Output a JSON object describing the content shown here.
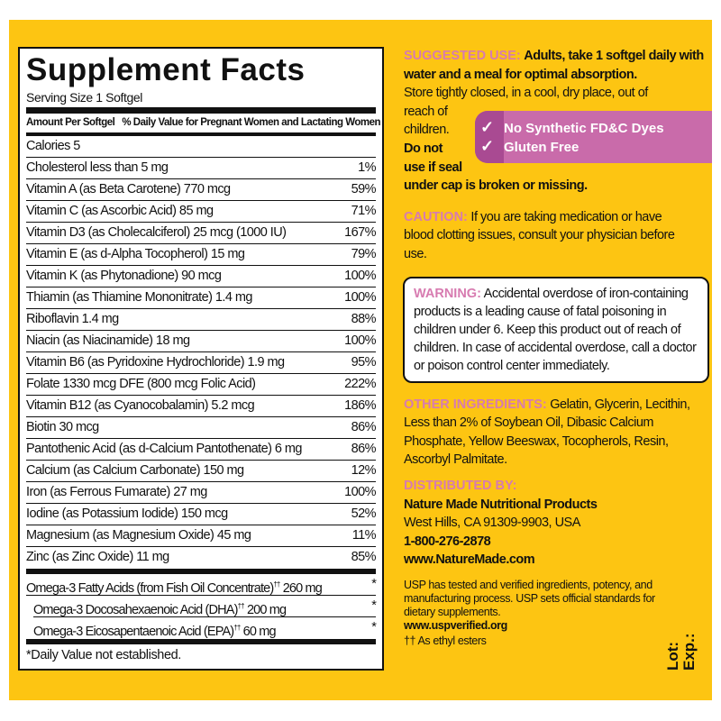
{
  "colors": {
    "background": "#FDC512",
    "accent_pink": "#D77BB0",
    "badge": "#C96BAA"
  },
  "facts": {
    "title": "Supplement Facts",
    "serving_size": "Serving Size 1 Softgel",
    "header_amount": "Amount Per Softgel",
    "header_dv": "% Daily Value for Pregnant Women and Lactating Women",
    "calories": "Calories 5",
    "rows": [
      {
        "name": "Cholesterol  less than 5 mg",
        "dv": "1%"
      },
      {
        "name": "Vitamin A (as Beta Carotene) 770 mcg",
        "dv": "59%"
      },
      {
        "name": "Vitamin C (as Ascorbic Acid) 85 mg",
        "dv": "71%"
      },
      {
        "name": "Vitamin D3 (as Cholecalciferol) 25 mcg (1000 IU)",
        "dv": "167%"
      },
      {
        "name": "Vitamin E (as d-Alpha Tocopherol) 15 mg",
        "dv": "79%"
      },
      {
        "name": "Vitamin K (as Phytonadione) 90 mcg",
        "dv": "100%"
      },
      {
        "name": "Thiamin (as Thiamine Mononitrate) 1.4 mg",
        "dv": "100%"
      },
      {
        "name": "Riboflavin 1.4 mg",
        "dv": "88%"
      },
      {
        "name": "Niacin (as Niacinamide) 18 mg",
        "dv": "100%"
      },
      {
        "name": "Vitamin B6 (as Pyridoxine Hydrochloride) 1.9 mg",
        "dv": "95%"
      },
      {
        "name": "Folate 1330 mcg DFE (800 mcg Folic Acid)",
        "dv": "222%"
      },
      {
        "name": "Vitamin B12 (as Cyanocobalamin) 5.2 mcg",
        "dv": "186%"
      },
      {
        "name": "Biotin 30 mcg",
        "dv": "86%"
      },
      {
        "name": "Pantothenic Acid (as d-Calcium Pantothenate) 6 mg",
        "dv": "86%"
      },
      {
        "name": "Calcium (as Calcium Carbonate) 150 mg",
        "dv": "12%"
      },
      {
        "name": "Iron (as Ferrous Fumarate) 27 mg",
        "dv": "100%"
      },
      {
        "name": "Iodine (as Potassium Iodide) 150 mcg",
        "dv": "52%"
      },
      {
        "name": "Magnesium (as Magnesium Oxide) 45 mg",
        "dv": "11%"
      },
      {
        "name": "Zinc (as Zinc Oxide) 11 mg",
        "dv": "85%"
      }
    ],
    "omega": [
      {
        "name": "Omega-3 Fatty Acids (from Fish Oil Concentrate)",
        "sup": "††",
        "amount": "260 mg",
        "dv": "*"
      },
      {
        "name": "Omega-3 Docosahexaenoic Acid (DHA)",
        "sup": "††",
        "amount": "200 mg",
        "dv": "*"
      },
      {
        "name": "Omega-3 Eicosapentaenoic Acid (EPA)",
        "sup": "††",
        "amount": "60 mg",
        "dv": "*"
      }
    ],
    "footnote": "*Daily Value not established."
  },
  "suggested_use": {
    "label": "SUGGESTED USE:",
    "text": "Adults, take 1 softgel daily with water and a meal for optimal absorption.",
    "store_1": "Store tightly closed, in a cool, dry place, out of",
    "store_2": "reach of",
    "store_3": "children.",
    "bold_1": "Do not",
    "bold_2": "use if seal",
    "bold_3": "under cap is broken or missing."
  },
  "badge": {
    "check_icon": "checkmark",
    "items": [
      "No Synthetic FD&C Dyes",
      "Gluten Free"
    ]
  },
  "caution": {
    "label": "CAUTION:",
    "text": "If you are taking medication or have blood clotting issues, consult your physician before use."
  },
  "warning": {
    "label": "WARNING:",
    "text": "Accidental overdose of iron-containing products is a leading cause of fatal poisoning in children under 6. Keep this product out of reach of children. In case of accidental overdose, call a doctor or poison control center immediately."
  },
  "other_ingredients": {
    "label": "OTHER INGREDIENTS:",
    "text": "Gelatin, Glycerin, Lecithin, Less than 2% of Soybean Oil, Dibasic Calcium Phosphate, Yellow Beeswax, Tocopherols, Resin, Ascorbyl Palmitate."
  },
  "distributor": {
    "label": "DISTRIBUTED BY:",
    "company": "Nature Made Nutritional Products",
    "address": "West Hills, CA 91309-9903, USA",
    "phone": "1-800-276-2878",
    "website": "www.NatureMade.com"
  },
  "usp": {
    "text": "USP has tested and verified ingredients, potency, and manufacturing process. USP sets official standards for dietary supplements.",
    "website": "www.uspverified.org",
    "footnote": "†† As ethyl esters"
  },
  "lot_label": "Lot:",
  "exp_label": "Exp.:"
}
